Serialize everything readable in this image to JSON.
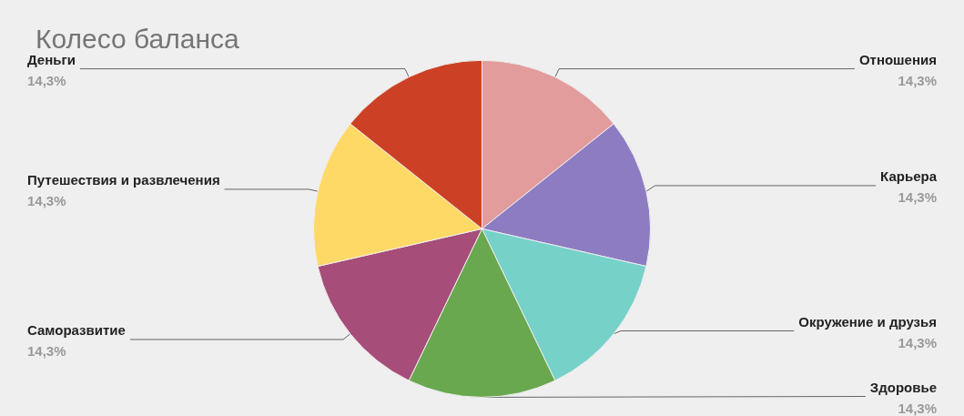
{
  "chart_data": {
    "type": "pie",
    "title": "Колесо баланса",
    "categories": [
      "Отношения",
      "Карьера",
      "Окружение и друзья",
      "Здоровье",
      "Саморазвитие",
      "Путешествия и развлечения",
      "Деньги"
    ],
    "values": [
      14.3,
      14.3,
      14.3,
      14.3,
      14.3,
      14.3,
      14.3
    ],
    "value_labels": [
      "14,3%",
      "14,3%",
      "14,3%",
      "14,3%",
      "14,3%",
      "14,3%",
      "14,3%"
    ],
    "colors": [
      "#e29c9c",
      "#8e7cc3",
      "#76d1c9",
      "#6aa84f",
      "#a64d79",
      "#ffd966",
      "#cc4125"
    ]
  }
}
